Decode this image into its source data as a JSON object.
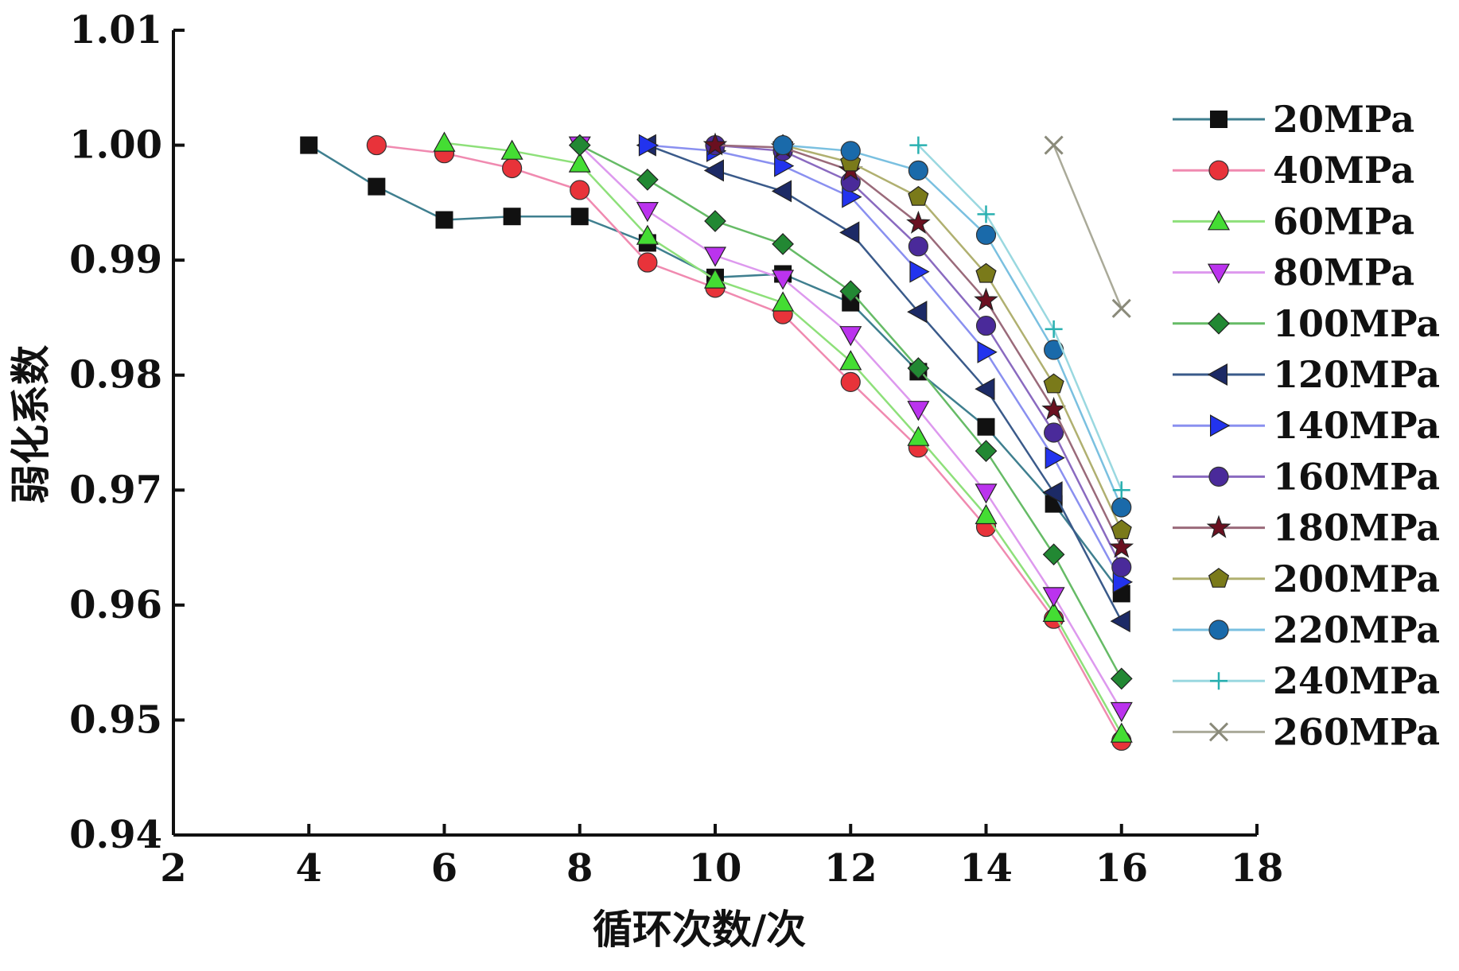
{
  "chart_data": {
    "type": "line",
    "title": "",
    "xlabel": "循环次数/次",
    "ylabel": "弱化系数",
    "xlim": [
      2,
      18
    ],
    "ylim": [
      0.94,
      1.01
    ],
    "x_ticks": [
      2,
      4,
      6,
      8,
      10,
      12,
      14,
      16,
      18
    ],
    "x_tick_labels": [
      "2",
      "4",
      "6",
      "8",
      "10",
      "12",
      "14",
      "16",
      "18"
    ],
    "y_ticks": [
      0.94,
      0.95,
      0.96,
      0.97,
      0.98,
      0.99,
      1.0,
      1.01
    ],
    "y_tick_labels": [
      "0.94",
      "0.95",
      "0.96",
      "0.97",
      "0.98",
      "0.99",
      "1.00",
      "1.01"
    ],
    "grid": false,
    "legend_position": "right",
    "series": [
      {
        "name": "20MPa",
        "marker": "square",
        "color": "#111111",
        "line_color": "#3f7f8f",
        "x": [
          4,
          5,
          6,
          7,
          8,
          9,
          10,
          11,
          12,
          13,
          14,
          15,
          16
        ],
        "y": [
          1.0,
          0.9964,
          0.9935,
          0.9938,
          0.9938,
          0.9915,
          0.9885,
          0.9888,
          0.9863,
          0.9803,
          0.9755,
          0.9688,
          0.961
        ]
      },
      {
        "name": "40MPa",
        "marker": "circle",
        "color": "#e8333a",
        "line_color": "#f08ab0",
        "x": [
          5,
          6,
          7,
          8,
          9,
          10,
          11,
          12,
          13,
          14,
          15,
          16
        ],
        "y": [
          1.0,
          0.9993,
          0.998,
          0.9961,
          0.9898,
          0.9876,
          0.9853,
          0.9794,
          0.9737,
          0.9668,
          0.9588,
          0.9482
        ]
      },
      {
        "name": "60MPa",
        "marker": "triangle-up",
        "color": "#44dd33",
        "line_color": "#8ee07a",
        "x": [
          6,
          7,
          8,
          9,
          10,
          11,
          12,
          13,
          14,
          15,
          16
        ],
        "y": [
          1.0002,
          0.9995,
          0.9984,
          0.9921,
          0.9883,
          0.9863,
          0.9812,
          0.9746,
          0.9678,
          0.9593,
          0.9488
        ]
      },
      {
        "name": "80MPa",
        "marker": "triangle-down",
        "color": "#bb33ee",
        "line_color": "#dd99ee",
        "x": [
          8,
          9,
          10,
          11,
          12,
          13,
          14,
          15,
          16
        ],
        "y": [
          1.0,
          0.9943,
          0.9904,
          0.9884,
          0.9835,
          0.977,
          0.9698,
          0.9608,
          0.9508
        ]
      },
      {
        "name": "100MPa",
        "marker": "diamond",
        "color": "#228833",
        "line_color": "#66bb66",
        "x": [
          8,
          9,
          10,
          11,
          12,
          13,
          14,
          15,
          16
        ],
        "y": [
          1.0,
          0.997,
          0.9934,
          0.9914,
          0.9873,
          0.9806,
          0.9734,
          0.9644,
          0.9536
        ]
      },
      {
        "name": "120MPa",
        "marker": "triangle-left",
        "color": "#1c2a66",
        "line_color": "#3a5a8a",
        "x": [
          9,
          10,
          11,
          12,
          13,
          14,
          15,
          16
        ],
        "y": [
          1.0,
          0.9978,
          0.996,
          0.9924,
          0.9855,
          0.9788,
          0.9698,
          0.9586
        ]
      },
      {
        "name": "140MPa",
        "marker": "triangle-right",
        "color": "#2233ee",
        "line_color": "#8a90f0",
        "x": [
          9,
          10,
          11,
          12,
          13,
          14,
          15,
          16
        ],
        "y": [
          1.0,
          0.9995,
          0.9982,
          0.9955,
          0.989,
          0.982,
          0.9728,
          0.962
        ]
      },
      {
        "name": "160MPa",
        "marker": "circle",
        "color": "#4a2a9a",
        "line_color": "#8a6ac0",
        "x": [
          10,
          11,
          12,
          13,
          14,
          15,
          16
        ],
        "y": [
          1.0,
          0.9995,
          0.9968,
          0.9912,
          0.9843,
          0.975,
          0.9633
        ]
      },
      {
        "name": "180MPa",
        "marker": "star",
        "color": "#6a1020",
        "line_color": "#9a6a7a",
        "x": [
          10,
          11,
          12,
          13,
          14,
          15,
          16
        ],
        "y": [
          1.0,
          0.9998,
          0.9978,
          0.9932,
          0.9865,
          0.977,
          0.965
        ]
      },
      {
        "name": "200MPa",
        "marker": "pentagon",
        "color": "#7a7a1a",
        "line_color": "#b0b070",
        "x": [
          11,
          12,
          13,
          14,
          15,
          16
        ],
        "y": [
          1.0,
          0.9985,
          0.9955,
          0.9888,
          0.9792,
          0.9665
        ]
      },
      {
        "name": "220MPa",
        "marker": "circle",
        "color": "#1a6aaa",
        "line_color": "#7ac0e0",
        "x": [
          11,
          12,
          13,
          14,
          15,
          16
        ],
        "y": [
          1.0,
          0.9995,
          0.9978,
          0.9922,
          0.9822,
          0.9685
        ]
      },
      {
        "name": "240MPa",
        "marker": "plus",
        "color": "#2ab0b0",
        "line_color": "#9ad8e0",
        "x": [
          13,
          14,
          15,
          16
        ],
        "y": [
          1.0,
          0.994,
          0.984,
          0.97
        ]
      },
      {
        "name": "260MPa",
        "marker": "x",
        "color": "#8a8a7a",
        "line_color": "#aaaa99",
        "x": [
          15,
          16
        ],
        "y": [
          1.0,
          0.9858
        ]
      }
    ]
  }
}
